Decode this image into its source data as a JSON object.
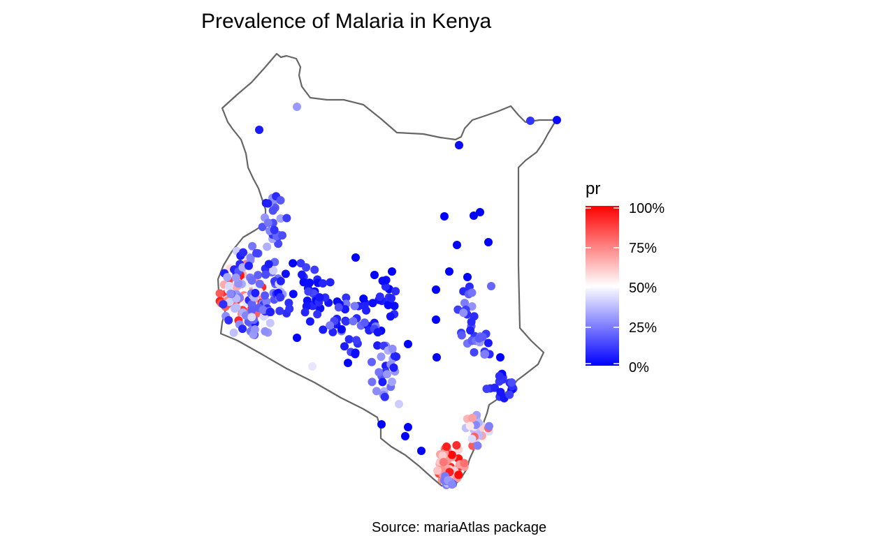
{
  "title": "Prevalence of Malaria in Kenya",
  "caption": "Source: mariaAtlas package",
  "legend": {
    "title": "pr",
    "labels": [
      "100%",
      "75%",
      "50%",
      "25%",
      "0%"
    ],
    "colors": {
      "low": "#0000ff",
      "mid": "#ffffff",
      "high": "#ff0000"
    }
  },
  "colors": {
    "border": "#666666"
  }
}
